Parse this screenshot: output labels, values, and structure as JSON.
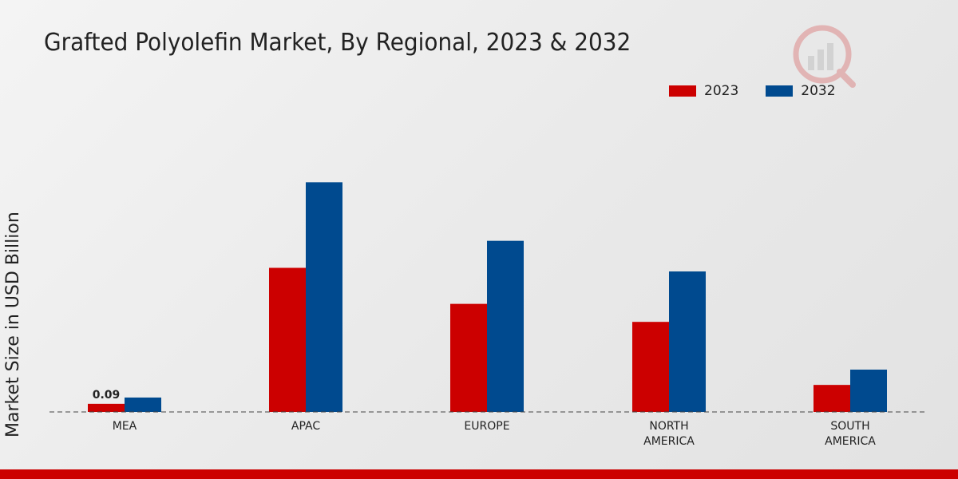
{
  "chart_data": {
    "type": "bar",
    "title": "Grafted Polyolefin Market, By Regional, 2023 & 2032",
    "xlabel": "",
    "ylabel": "Market Size in USD Billion",
    "categories": [
      "MEA",
      "APAC",
      "EUROPE",
      "NORTH AMERICA",
      "SOUTH AMERICA"
    ],
    "category_lines": [
      [
        "MEA"
      ],
      [
        "APAC"
      ],
      [
        "EUROPE"
      ],
      [
        "NORTH",
        "AMERICA"
      ],
      [
        "SOUTH",
        "AMERICA"
      ]
    ],
    "series": [
      {
        "name": "2023",
        "color": "#cc0000",
        "values": [
          0.09,
          1.6,
          1.2,
          1.0,
          0.3
        ]
      },
      {
        "name": "2032",
        "color": "#004a8f",
        "values": [
          0.16,
          2.55,
          1.9,
          1.56,
          0.47
        ]
      }
    ],
    "data_labels": [
      {
        "series": 0,
        "index": 0,
        "text": "0.09"
      }
    ],
    "ylim": [
      0,
      3.2
    ],
    "grid": false,
    "legend_position": "top-right"
  }
}
